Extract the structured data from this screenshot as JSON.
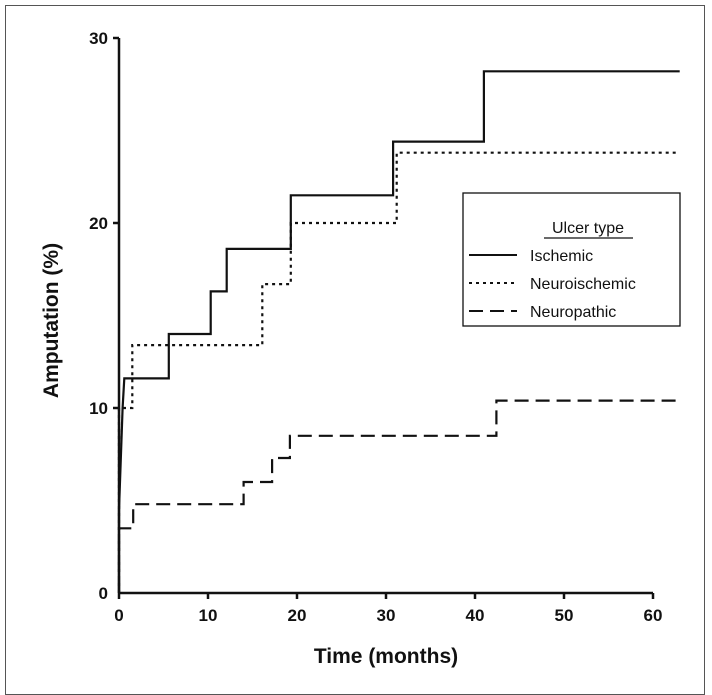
{
  "chart_data": {
    "type": "line",
    "title": "",
    "xlabel": "Time (months)",
    "ylabel": "Amputation (%)",
    "xlim": [
      0,
      63
    ],
    "ylim": [
      0,
      30
    ],
    "x_ticks": [
      0,
      10,
      20,
      30,
      40,
      50,
      60
    ],
    "y_ticks": [
      0,
      10,
      20,
      30
    ],
    "grid": false,
    "step_plot": true,
    "legend": {
      "title": "Ulcer type",
      "placement": "right"
    },
    "series": [
      {
        "name": "Ischemic",
        "line_style": "solid",
        "color": "#111111",
        "points": [
          [
            0,
            0
          ],
          [
            0,
            4.5
          ],
          [
            0.4,
            10
          ],
          [
            0.6,
            11.6
          ],
          [
            5.6,
            11.6
          ],
          [
            5.6,
            14
          ],
          [
            10.3,
            14
          ],
          [
            10.3,
            16.3
          ],
          [
            12.1,
            16.3
          ],
          [
            12.1,
            18.6
          ],
          [
            19.3,
            18.6
          ],
          [
            19.3,
            21.5
          ],
          [
            30.8,
            21.5
          ],
          [
            30.8,
            24.4
          ],
          [
            41,
            24.4
          ],
          [
            41,
            28.2
          ],
          [
            63,
            28.2
          ]
        ]
      },
      {
        "name": "Neuroischemic",
        "line_style": "dotted",
        "color": "#111111",
        "points": [
          [
            0,
            0
          ],
          [
            0,
            10
          ],
          [
            1.5,
            10
          ],
          [
            1.5,
            13.4
          ],
          [
            16.1,
            13.4
          ],
          [
            16.1,
            16.7
          ],
          [
            19.3,
            16.7
          ],
          [
            19.3,
            20
          ],
          [
            31.2,
            20
          ],
          [
            31.2,
            23.8
          ],
          [
            63,
            23.8
          ]
        ]
      },
      {
        "name": "Neuropathic",
        "line_style": "dashed",
        "color": "#111111",
        "points": [
          [
            0,
            0
          ],
          [
            0,
            3.5
          ],
          [
            1.6,
            3.5
          ],
          [
            1.6,
            4.8
          ],
          [
            14,
            4.8
          ],
          [
            14,
            6
          ],
          [
            17.2,
            6
          ],
          [
            17.2,
            7.3
          ],
          [
            19.2,
            7.3
          ],
          [
            19.2,
            8.5
          ],
          [
            42.4,
            8.5
          ],
          [
            42.4,
            10.4
          ],
          [
            63,
            10.4
          ]
        ]
      }
    ]
  }
}
